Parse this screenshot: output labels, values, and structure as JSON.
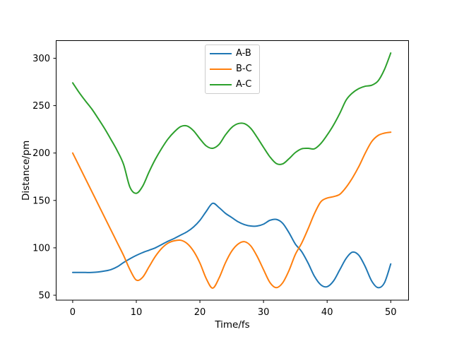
{
  "figure": {
    "background": "#ffffff",
    "frame_color": "#000000"
  },
  "chart_data": {
    "type": "line",
    "title": "",
    "xlabel": "Time/fs",
    "ylabel": "Distance/pm",
    "grid": false,
    "legend_position": "upper center",
    "legend_border_color": "#cccccc",
    "line_width": 2,
    "xticks": [
      0,
      10,
      20,
      30,
      40,
      50
    ],
    "yticks": [
      50,
      100,
      150,
      200,
      250,
      300
    ],
    "xlim": [
      -2.6,
      52.8
    ],
    "ylim": [
      44.8,
      318.6
    ],
    "x": [
      0,
      1,
      2,
      3,
      4,
      5,
      6,
      7,
      8,
      9,
      10,
      11,
      12,
      13,
      14,
      15,
      16,
      17,
      18,
      19,
      20,
      21,
      22,
      23,
      24,
      25,
      26,
      27,
      28,
      29,
      30,
      31,
      32,
      33,
      34,
      35,
      36,
      37,
      38,
      39,
      40,
      41,
      42,
      43,
      44,
      45,
      46,
      47,
      48,
      49,
      50
    ],
    "series": [
      {
        "name": "A-B",
        "color": "#1f77b4",
        "values": [
          74,
          74,
          74,
          74,
          74.5,
          75.5,
          77,
          80,
          84.5,
          88.5,
          92,
          95,
          97.5,
          100,
          103.5,
          107,
          110,
          113.5,
          117,
          122,
          129,
          138.5,
          147,
          142.5,
          136.5,
          132,
          127.5,
          124.5,
          123,
          123,
          125,
          129,
          130,
          126,
          116,
          104,
          96,
          84,
          70,
          61,
          59,
          65,
          77,
          89,
          95.5,
          92,
          80,
          65,
          58,
          63,
          83
        ]
      },
      {
        "name": "B-C",
        "color": "#ff7f0e",
        "values": [
          200,
          186.5,
          173,
          159.5,
          146,
          132.5,
          119,
          105.5,
          92,
          77,
          66,
          69,
          80,
          91,
          99.5,
          105,
          107.5,
          108,
          104.5,
          96.5,
          84,
          67.5,
          57.5,
          68,
          84,
          96.5,
          104,
          106.5,
          102,
          91,
          77,
          63.5,
          58,
          63,
          76,
          93,
          105,
          120,
          136,
          148.5,
          152.5,
          154,
          156.5,
          164,
          174,
          186,
          200,
          212,
          218.5,
          221,
          222
        ]
      },
      {
        "name": "A-C",
        "color": "#2ca02c",
        "values": [
          274,
          264,
          255,
          246.5,
          236.5,
          226,
          214.5,
          202.5,
          188,
          164,
          157.5,
          165,
          180,
          193.5,
          205,
          215,
          222.5,
          228,
          228.5,
          223.5,
          215,
          207.5,
          205,
          209,
          219,
          227,
          231,
          231,
          226,
          216.5,
          206,
          196,
          189,
          188.5,
          194,
          200.5,
          204.5,
          205,
          204.5,
          210,
          219,
          229.5,
          242,
          256,
          263.5,
          268,
          270.5,
          271.5,
          276,
          288,
          305.5
        ]
      }
    ]
  }
}
